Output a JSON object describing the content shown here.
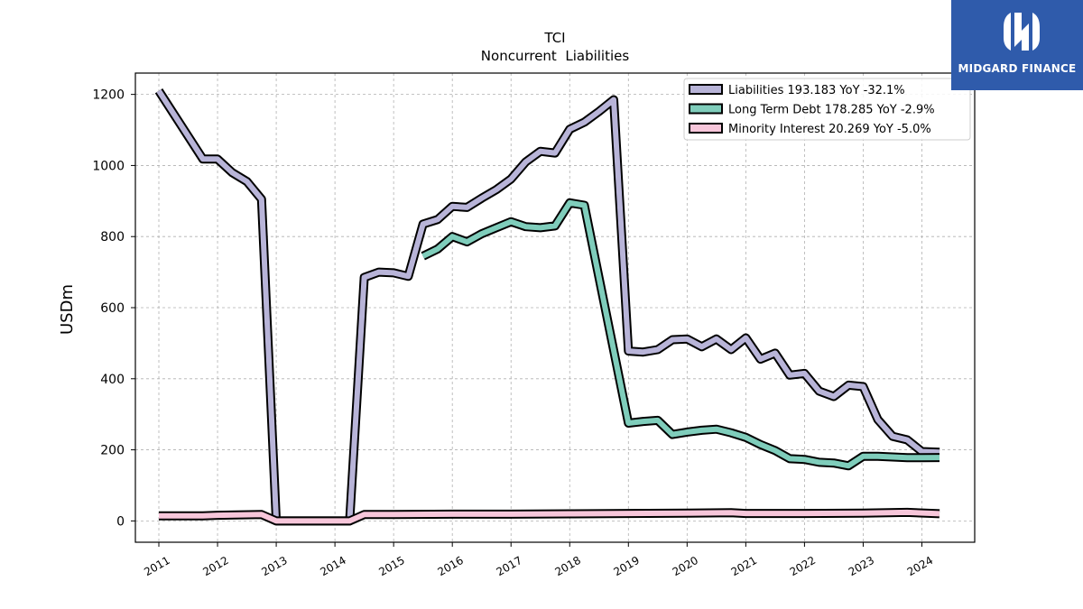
{
  "brand": {
    "name": "MIDGARD FINANCE",
    "color": "#2f5bab"
  },
  "chart_data": {
    "type": "line",
    "title": "TCI",
    "subtitle": "Noncurrent  Liabilities",
    "ylabel": "USDm",
    "xlabel": "",
    "ylim": [
      -60,
      1260
    ],
    "xlim": [
      2010.6,
      2024.9
    ],
    "yticks": [
      0,
      200,
      400,
      600,
      800,
      1000,
      1200
    ],
    "xticks": [
      "2011",
      "2012",
      "2013",
      "2014",
      "2015",
      "2016",
      "2017",
      "2018",
      "2019",
      "2020",
      "2021",
      "2022",
      "2023",
      "2024"
    ],
    "grid": true,
    "legend_position": "top-right",
    "series": [
      {
        "name": "Liabilities",
        "legend_label": "Liabilities  193.183 YoY -32.1%",
        "color": "#b8b4d8",
        "x": [
          2011.0,
          2011.75,
          2012.0,
          2012.25,
          2012.5,
          2012.75,
          2013.0,
          2013.25,
          2013.5,
          2013.75,
          2014.0,
          2014.25,
          2014.5,
          2014.75,
          2015.0,
          2015.25,
          2015.5,
          2015.75,
          2016.0,
          2016.25,
          2016.5,
          2016.75,
          2017.0,
          2017.25,
          2017.5,
          2017.75,
          2018.0,
          2018.25,
          2018.5,
          2018.75,
          2019.0,
          2019.25,
          2019.5,
          2019.75,
          2020.0,
          2020.25,
          2020.5,
          2020.75,
          2021.0,
          2021.25,
          2021.5,
          2021.75,
          2022.0,
          2022.25,
          2022.5,
          2022.75,
          2023.0,
          2023.25,
          2023.5,
          2023.75,
          2024.0,
          2024.3
        ],
        "values": [
          1210,
          1018,
          1018,
          980,
          955,
          905,
          0,
          0,
          0,
          0,
          0,
          0,
          685,
          700,
          698,
          688,
          835,
          848,
          885,
          882,
          908,
          932,
          962,
          1010,
          1040,
          1035,
          1102,
          1122,
          1152,
          1185,
          478,
          475,
          482,
          510,
          512,
          490,
          512,
          482,
          515,
          455,
          472,
          410,
          415,
          365,
          350,
          382,
          378,
          285,
          238,
          228,
          195,
          193.183
        ]
      },
      {
        "name": "Long Term Debt",
        "legend_label": "Long Term Debt  178.285 YoY -2.9%",
        "color": "#7fcdbb",
        "x": [
          2015.5,
          2015.75,
          2016.0,
          2016.25,
          2016.5,
          2016.75,
          2017.0,
          2017.25,
          2017.5,
          2017.75,
          2018.0,
          2018.25,
          2019.0,
          2019.25,
          2019.5,
          2019.75,
          2020.0,
          2020.25,
          2020.5,
          2020.75,
          2021.0,
          2021.25,
          2021.5,
          2021.75,
          2022.0,
          2022.25,
          2022.5,
          2022.75,
          2023.0,
          2023.25,
          2023.5,
          2023.75,
          2024.0,
          2024.3
        ],
        "values": [
          745,
          765,
          800,
          785,
          808,
          825,
          842,
          828,
          825,
          830,
          895,
          888,
          275,
          280,
          283,
          243,
          250,
          255,
          258,
          248,
          235,
          215,
          198,
          175,
          173,
          165,
          163,
          155,
          182,
          182,
          180,
          178,
          178,
          178.285
        ]
      },
      {
        "name": "Minority Interest",
        "legend_label": "Minority Interest  20.269 YoY -5.0%",
        "color": "#f7c6da",
        "x": [
          2011.0,
          2011.75,
          2012.0,
          2012.75,
          2013.0,
          2013.5,
          2014.0,
          2014.25,
          2014.5,
          2015.0,
          2016.0,
          2017.0,
          2018.0,
          2019.0,
          2020.0,
          2020.75,
          2021.0,
          2022.0,
          2023.0,
          2023.75,
          2024.3
        ],
        "values": [
          14,
          14,
          16,
          18,
          0,
          0,
          0,
          0,
          18,
          18,
          19,
          19,
          20,
          21,
          22,
          23,
          21,
          21,
          22,
          24,
          20.269
        ]
      }
    ]
  }
}
